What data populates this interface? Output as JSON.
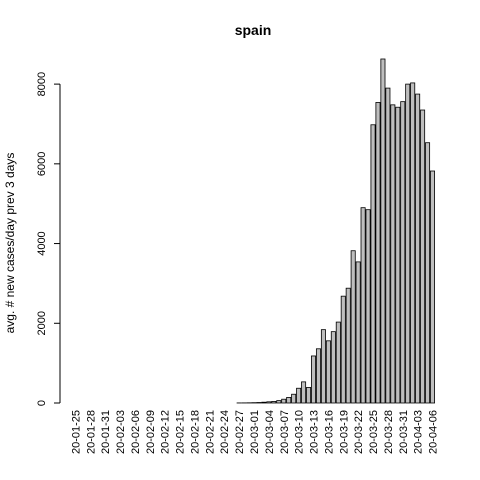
{
  "chart_data": {
    "type": "bar",
    "title": "spain",
    "y_label": "avg. # new cases/day prev  3  days",
    "categories": [
      "20-01-25",
      null,
      null,
      "20-01-28",
      null,
      null,
      "20-01-31",
      null,
      null,
      "20-02-03",
      null,
      null,
      "20-02-06",
      null,
      null,
      "20-02-09",
      null,
      null,
      "20-02-12",
      null,
      null,
      "20-02-15",
      null,
      null,
      "20-02-18",
      null,
      null,
      "20-02-21",
      null,
      null,
      "20-02-24",
      null,
      null,
      "20-02-27",
      null,
      null,
      "20-03-01",
      null,
      null,
      "20-03-04",
      null,
      null,
      "20-03-07",
      null,
      null,
      "20-03-10",
      null,
      null,
      "20-03-13",
      null,
      null,
      "20-03-16",
      null,
      null,
      "20-03-19",
      null,
      null,
      "20-03-22",
      null,
      null,
      "20-03-25",
      null,
      null,
      "20-03-28",
      null,
      null,
      "20-03-31",
      null,
      null,
      "20-04-03",
      null,
      null,
      "20-04-06"
    ],
    "values": [
      0,
      0,
      0,
      0,
      0,
      0,
      0,
      0,
      0,
      0,
      0,
      0,
      0,
      0,
      0,
      0,
      0,
      0,
      0,
      0,
      0,
      0,
      0,
      0,
      0,
      0,
      0,
      0,
      0,
      0,
      0,
      0,
      0,
      2,
      3,
      5,
      8,
      12,
      20,
      30,
      40,
      60,
      95,
      140,
      220,
      370,
      530,
      390,
      1180,
      1360,
      1840,
      1560,
      1790,
      2030,
      2680,
      2880,
      3820,
      3540,
      4900,
      4850,
      6980,
      7540,
      8630,
      7900,
      7480,
      7420,
      7560,
      8000,
      8030,
      7750,
      7350,
      6530,
      5820
    ],
    "color": "#bebebe",
    "ylim": [
      0,
      8630
    ],
    "yticks": [
      0,
      2000,
      4000,
      6000,
      8000
    ]
  }
}
